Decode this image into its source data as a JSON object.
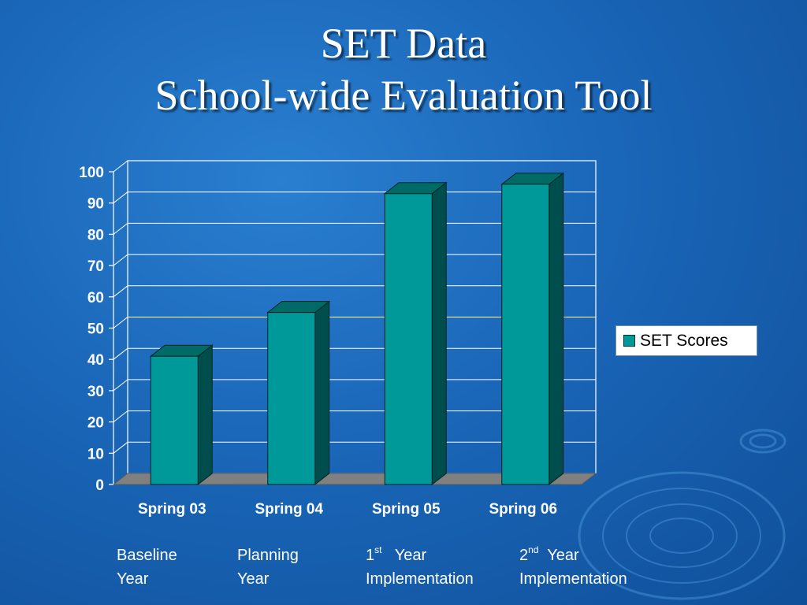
{
  "title": {
    "line1": "SET  Data",
    "line2": "School-wide Evaluation Tool"
  },
  "colors": {
    "bar_front": "#009999",
    "bar_side": "#004d4d",
    "bar_top": "#006b66",
    "floor": "#808080"
  },
  "chart_data": {
    "type": "bar",
    "categories": [
      "Spring 03",
      "Spring 04",
      "Spring 05",
      "Spring 06"
    ],
    "series": [
      {
        "name": "SET Scores",
        "values": [
          41,
          55,
          93,
          96
        ]
      }
    ],
    "ylim": [
      0,
      100
    ],
    "yticks": [
      "0",
      "10",
      "20",
      "30",
      "40",
      "50",
      "60",
      "70",
      "80",
      "90",
      "100"
    ],
    "grid": true,
    "legend_position": "right",
    "style": "3d"
  },
  "legend": {
    "label": "SET Scores"
  },
  "phases": [
    {
      "line1_pre": "Baseline",
      "sup": "",
      "line1_post": "",
      "line2": "Year"
    },
    {
      "line1_pre": "Planning",
      "sup": "",
      "line1_post": "",
      "line2": "Year"
    },
    {
      "line1_pre": "1",
      "sup": "st",
      "line1_post": "   Year",
      "line2": "Implementation"
    },
    {
      "line1_pre": "2",
      "sup": "nd",
      "line1_post": "  Year",
      "line2": "Implementation"
    }
  ]
}
